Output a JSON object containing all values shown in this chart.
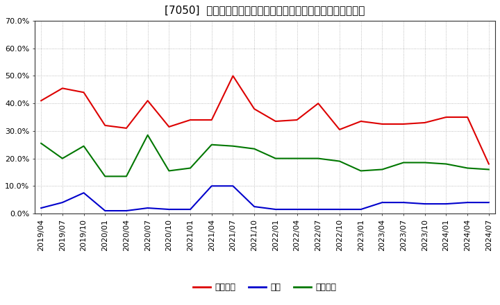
{
  "title": "[7050]  売上債権、在庫、買入債務の総資産に対する比率の推移",
  "ylim": [
    0.0,
    0.7
  ],
  "yticks": [
    0.0,
    0.1,
    0.2,
    0.3,
    0.4,
    0.5,
    0.6,
    0.7
  ],
  "legend_labels": [
    "売上債権",
    "在庫",
    "買入債務"
  ],
  "legend_colors": [
    "#dd0000",
    "#0000cc",
    "#007700"
  ],
  "dates": [
    "2019/04",
    "2019/07",
    "2019/10",
    "2020/01",
    "2020/04",
    "2020/07",
    "2020/10",
    "2021/01",
    "2021/04",
    "2021/07",
    "2021/10",
    "2022/01",
    "2022/04",
    "2022/07",
    "2022/10",
    "2023/01",
    "2023/04",
    "2023/07",
    "2023/10",
    "2024/01",
    "2024/04",
    "2024/07"
  ],
  "series_receivables": [
    0.41,
    0.455,
    0.44,
    0.32,
    0.31,
    0.41,
    0.315,
    0.34,
    0.34,
    0.5,
    0.38,
    0.335,
    0.34,
    0.4,
    0.305,
    0.335,
    0.325,
    0.325,
    0.33,
    0.35,
    0.35,
    0.18
  ],
  "series_inventory": [
    0.02,
    0.04,
    0.075,
    0.01,
    0.01,
    0.02,
    0.015,
    0.015,
    0.1,
    0.1,
    0.025,
    0.015,
    0.015,
    0.015,
    0.015,
    0.015,
    0.04,
    0.04,
    0.035,
    0.035,
    0.04,
    0.04
  ],
  "series_payables": [
    0.255,
    0.2,
    0.245,
    0.135,
    0.135,
    0.285,
    0.155,
    0.165,
    0.25,
    0.245,
    0.235,
    0.2,
    0.2,
    0.2,
    0.19,
    0.155,
    0.16,
    0.185,
    0.185,
    0.18,
    0.165,
    0.16
  ],
  "background_color": "#ffffff",
  "grid_color": "#aaaaaa",
  "title_fontsize": 11,
  "tick_fontsize": 8,
  "legend_fontsize": 9
}
